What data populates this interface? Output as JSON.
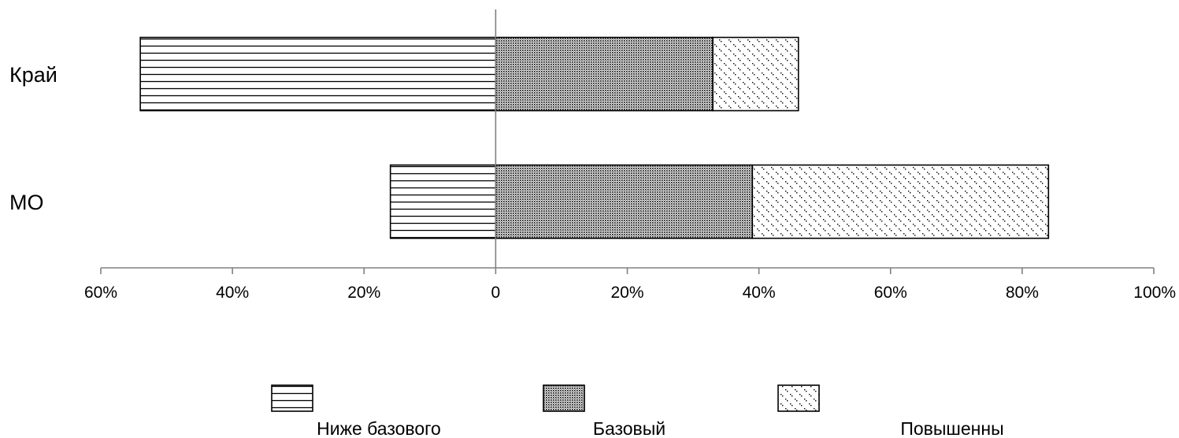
{
  "chart_data": {
    "type": "bar",
    "orientation": "horizontal",
    "stacked": "diverging",
    "categories": [
      "Край",
      "МО"
    ],
    "series": [
      {
        "name": "Ниже базового",
        "values": [
          54,
          16
        ],
        "direction": "negative",
        "pattern": "horizontal-lines"
      },
      {
        "name": "Базовый",
        "values": [
          33,
          39
        ],
        "direction": "positive",
        "pattern": "dense-dots"
      },
      {
        "name": "Повышенны",
        "values": [
          13,
          45
        ],
        "direction": "positive",
        "pattern": "sparse-dots"
      }
    ],
    "xlim": [
      -60,
      100
    ],
    "x_ticks": [
      {
        "value": -60,
        "label": "60%"
      },
      {
        "value": -40,
        "label": "40%"
      },
      {
        "value": -20,
        "label": "20%"
      },
      {
        "value": 0,
        "label": "0"
      },
      {
        "value": 20,
        "label": "20%"
      },
      {
        "value": 40,
        "label": "40%"
      },
      {
        "value": 60,
        "label": "60%"
      },
      {
        "value": 80,
        "label": "80%"
      },
      {
        "value": 100,
        "label": "100%"
      }
    ],
    "title": "",
    "xlabel": "",
    "ylabel": "",
    "grid": false,
    "legend_position": "bottom",
    "colors": {
      "stroke": "#000000",
      "axis": "#808080",
      "background": "#ffffff"
    }
  }
}
